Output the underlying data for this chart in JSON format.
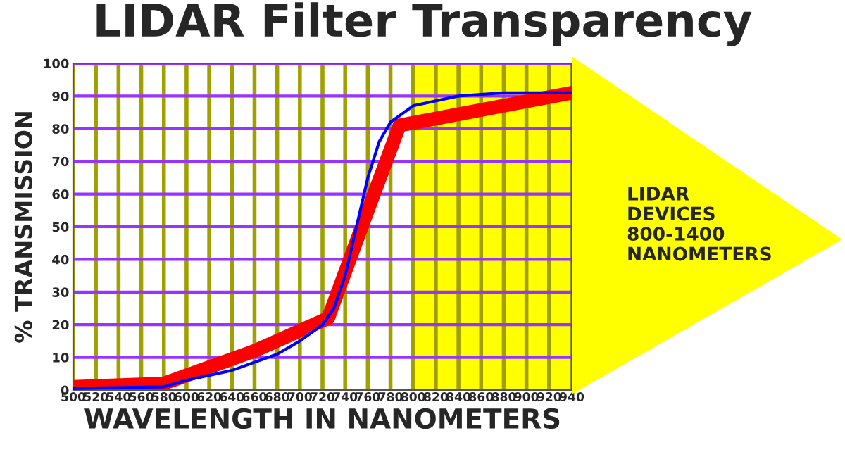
{
  "chart_data": {
    "type": "line",
    "title": "LIDAR Filter Transparency",
    "xlabel": "WAVELENGTH IN NANOMETERS",
    "ylabel": "% TRANSMISSION",
    "series": [
      {
        "color": "#0000ff",
        "x": [
          500,
          580,
          600,
          640,
          680,
          700,
          720,
          730,
          740,
          750,
          760,
          770,
          780,
          800,
          840,
          880,
          940
        ],
        "values": [
          0.5,
          1,
          3,
          6,
          11,
          15,
          20,
          25,
          35,
          50,
          65,
          76,
          82,
          87,
          90,
          91,
          91
        ]
      },
      {
        "color": "#ff0000",
        "x": [
          500,
          580,
          660,
          725,
          760,
          788,
          940
        ],
        "values": [
          1,
          2,
          12,
          22,
          55,
          81,
          91
        ]
      }
    ],
    "xlim": [
      500,
      940
    ],
    "ylim": [
      0,
      100
    ],
    "xticks": [
      500,
      520,
      540,
      560,
      580,
      600,
      620,
      640,
      660,
      680,
      700,
      720,
      740,
      760,
      780,
      800,
      820,
      840,
      860,
      880,
      900,
      920,
      940
    ],
    "yticks": [
      0,
      10,
      20,
      30,
      40,
      50,
      60,
      70,
      80,
      90,
      100
    ],
    "grid": true,
    "bands": [
      {
        "axis": "x",
        "from": 800,
        "to": 940,
        "color": "#ffff00"
      }
    ],
    "annotations": [
      "LIDAR\nDEVICES\n800-1400\nNANOMETERS"
    ]
  }
}
